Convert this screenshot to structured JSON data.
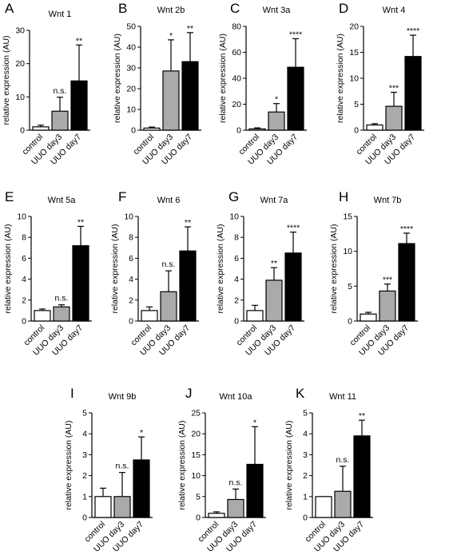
{
  "chart_data": [
    {
      "type": "bar",
      "panel": "A",
      "title": "Wnt 1",
      "ylabel": "relative expression (AU)",
      "categories": [
        "control",
        "UUO day3",
        "UUO day7"
      ],
      "values": [
        1.0,
        5.7,
        14.8
      ],
      "errors": [
        0.5,
        4.2,
        10.8
      ],
      "significance": [
        "",
        "n.s.",
        "**"
      ],
      "fill": [
        "#ffffff",
        "#aaaaaa",
        "#000000"
      ],
      "ylim": [
        0,
        30
      ],
      "yticks": [
        0,
        10,
        20,
        30
      ]
    },
    {
      "type": "bar",
      "panel": "B",
      "title": "Wnt 2b",
      "ylabel": "relative expression (AU)",
      "categories": [
        "control",
        "UUO day3",
        "UUO day7"
      ],
      "values": [
        1.0,
        28.5,
        33.0
      ],
      "errors": [
        0.5,
        15.0,
        14.0
      ],
      "significance": [
        "",
        "*",
        "**"
      ],
      "fill": [
        "#ffffff",
        "#aaaaaa",
        "#000000"
      ],
      "ylim": [
        0,
        50
      ],
      "yticks": [
        0,
        10,
        20,
        30,
        40,
        50
      ]
    },
    {
      "type": "bar",
      "panel": "C",
      "title": "Wnt 3a",
      "ylabel": "relative expression (AU)",
      "categories": [
        "control",
        "UUO day3",
        "UUO day7"
      ],
      "values": [
        1.0,
        14.0,
        48.5
      ],
      "errors": [
        0.8,
        6.5,
        22.0
      ],
      "significance": [
        "",
        "*",
        "****"
      ],
      "fill": [
        "#ffffff",
        "#aaaaaa",
        "#000000"
      ],
      "ylim": [
        0,
        80
      ],
      "yticks": [
        0,
        20,
        40,
        60,
        80
      ]
    },
    {
      "type": "bar",
      "panel": "D",
      "title": "Wnt 4",
      "ylabel": "relative expression (AU)",
      "categories": [
        "control",
        "UUO day3",
        "UUO day7"
      ],
      "values": [
        1.0,
        4.6,
        14.2
      ],
      "errors": [
        0.25,
        2.7,
        4.1
      ],
      "significance": [
        "",
        "***",
        "****"
      ],
      "fill": [
        "#ffffff",
        "#aaaaaa",
        "#000000"
      ],
      "ylim": [
        0,
        20
      ],
      "yticks": [
        0,
        5,
        10,
        15,
        20
      ]
    },
    {
      "type": "bar",
      "panel": "E",
      "title": "Wnt 5a",
      "ylabel": "relative expression (AU)",
      "categories": [
        "control",
        "UUO day3",
        "UUO day7"
      ],
      "values": [
        1.0,
        1.35,
        7.2
      ],
      "errors": [
        0.15,
        0.2,
        1.85
      ],
      "significance": [
        "",
        "n.s.",
        "**"
      ],
      "fill": [
        "#ffffff",
        "#aaaaaa",
        "#000000"
      ],
      "ylim": [
        0,
        10
      ],
      "yticks": [
        0,
        2,
        4,
        6,
        8,
        10
      ]
    },
    {
      "type": "bar",
      "panel": "F",
      "title": "Wnt 6",
      "ylabel": "relative expression (AU)",
      "categories": [
        "control",
        "UUO day3",
        "UUO day7"
      ],
      "values": [
        1.0,
        2.8,
        6.7
      ],
      "errors": [
        0.35,
        2.0,
        2.3
      ],
      "significance": [
        "",
        "n.s.",
        "**"
      ],
      "fill": [
        "#ffffff",
        "#aaaaaa",
        "#000000"
      ],
      "ylim": [
        0,
        10
      ],
      "yticks": [
        0,
        2,
        4,
        6,
        8,
        10
      ]
    },
    {
      "type": "bar",
      "panel": "G",
      "title": "Wnt 7a",
      "ylabel": "relative expression (AU)",
      "categories": [
        "control",
        "UUO day3",
        "UUO day7"
      ],
      "values": [
        1.0,
        3.9,
        6.5
      ],
      "errors": [
        0.5,
        1.2,
        2.0
      ],
      "significance": [
        "",
        "**",
        "****"
      ],
      "fill": [
        "#ffffff",
        "#aaaaaa",
        "#000000"
      ],
      "ylim": [
        0,
        10
      ],
      "yticks": [
        0,
        2,
        4,
        6,
        8,
        10
      ]
    },
    {
      "type": "bar",
      "panel": "H",
      "title": "Wnt 7b",
      "ylabel": "relative expression (AU)",
      "categories": [
        "control",
        "UUO day3",
        "UUO day7"
      ],
      "values": [
        1.0,
        4.3,
        11.1
      ],
      "errors": [
        0.25,
        1.0,
        1.5
      ],
      "significance": [
        "",
        "***",
        "****"
      ],
      "fill": [
        "#ffffff",
        "#aaaaaa",
        "#000000"
      ],
      "ylim": [
        0,
        15
      ],
      "yticks": [
        0,
        5,
        10,
        15
      ]
    },
    {
      "type": "bar",
      "panel": "I",
      "title": "Wnt 9b",
      "ylabel": "relative expression (AU)",
      "categories": [
        "control",
        "UUO day3",
        "UUO day7"
      ],
      "values": [
        1.0,
        1.0,
        2.75
      ],
      "errors": [
        0.4,
        1.15,
        1.1
      ],
      "significance": [
        "",
        "n.s.",
        "*"
      ],
      "fill": [
        "#ffffff",
        "#aaaaaa",
        "#000000"
      ],
      "ylim": [
        0,
        5
      ],
      "yticks": [
        0,
        1,
        2,
        3,
        4,
        5
      ]
    },
    {
      "type": "bar",
      "panel": "J",
      "title": "Wnt 10a",
      "ylabel": "relative expression (AU)",
      "categories": [
        "control",
        "UUO day3",
        "UUO day7"
      ],
      "values": [
        1.0,
        4.3,
        12.7
      ],
      "errors": [
        0.35,
        2.5,
        9.0
      ],
      "significance": [
        "",
        "n.s.",
        "*"
      ],
      "fill": [
        "#ffffff",
        "#aaaaaa",
        "#000000"
      ],
      "ylim": [
        0,
        25
      ],
      "yticks": [
        0,
        5,
        10,
        15,
        20,
        25
      ]
    },
    {
      "type": "bar",
      "panel": "K",
      "title": "Wnt 11",
      "ylabel": "relative expression (AU)",
      "categories": [
        "control",
        "UUO day3",
        "UUO day7"
      ],
      "values": [
        1.0,
        1.25,
        3.9
      ],
      "errors": [
        0.0,
        1.2,
        0.75
      ],
      "significance": [
        "",
        "n.s.",
        "**"
      ],
      "fill": [
        "#ffffff",
        "#aaaaaa",
        "#000000"
      ],
      "ylim": [
        0,
        5
      ],
      "yticks": [
        0,
        1,
        2,
        3,
        4,
        5
      ]
    }
  ]
}
